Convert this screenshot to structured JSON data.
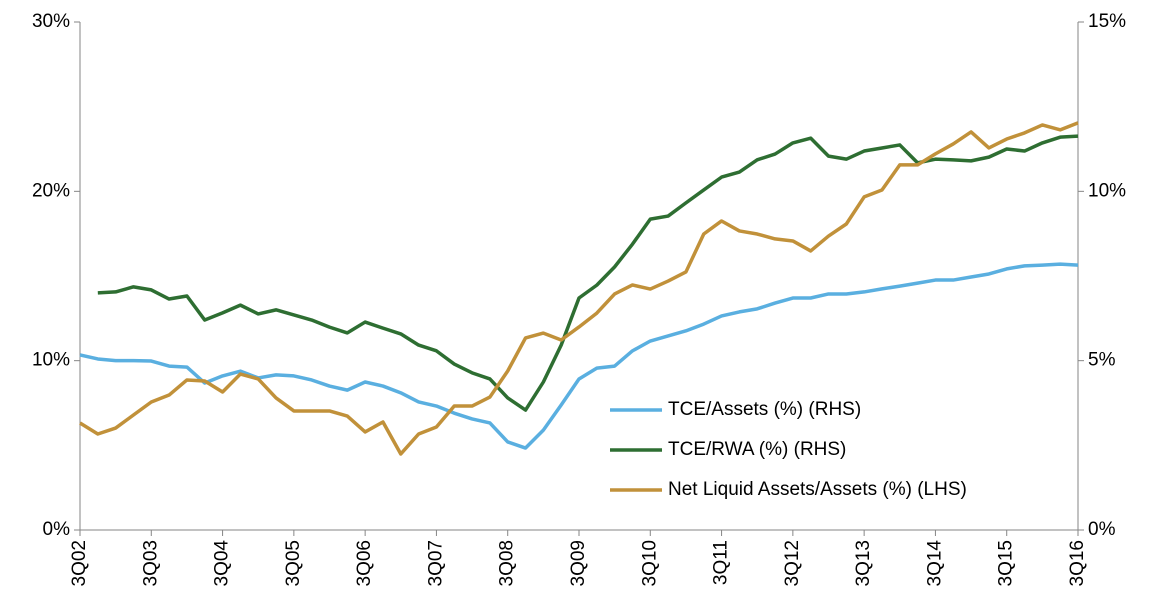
{
  "chart_data": {
    "type": "line",
    "categories": [
      "3Q02",
      null,
      null,
      null,
      "3Q03",
      null,
      null,
      null,
      "3Q04",
      null,
      null,
      null,
      "3Q05",
      null,
      null,
      null,
      "3Q06",
      null,
      null,
      null,
      "3Q07",
      null,
      null,
      null,
      "3Q08",
      null,
      null,
      null,
      "3Q09",
      null,
      null,
      null,
      "3Q10",
      null,
      null,
      null,
      "3Q11",
      null,
      null,
      null,
      "3Q12",
      null,
      null,
      null,
      "3Q13",
      null,
      null,
      null,
      "3Q14",
      null,
      null,
      null,
      "3Q15",
      null,
      null,
      null,
      "3Q16"
    ],
    "series": [
      {
        "name": "TCE/Assets (%) (RHS)",
        "color": "#5aafe0",
        "axis": "y2",
        "values": [
          5.17,
          5.05,
          5.0,
          5.0,
          4.99,
          4.84,
          4.81,
          4.34,
          4.55,
          4.69,
          4.49,
          4.58,
          4.55,
          4.43,
          4.25,
          4.13,
          4.37,
          4.25,
          4.05,
          3.78,
          3.66,
          3.45,
          3.28,
          3.16,
          2.6,
          2.42,
          2.95,
          3.69,
          4.46,
          4.78,
          4.84,
          5.29,
          5.58,
          5.73,
          5.88,
          6.08,
          6.32,
          6.44,
          6.53,
          6.7,
          6.85,
          6.85,
          6.97,
          6.97,
          7.03,
          7.12,
          7.2,
          7.29,
          7.38,
          7.38,
          7.47,
          7.56,
          7.71,
          7.8,
          7.82,
          7.85,
          7.82
        ]
      },
      {
        "name": "TCE/RWA (%) (RHS)",
        "color": "#2e6e32",
        "axis": "y2",
        "values": [
          null,
          7.0,
          7.03,
          7.18,
          7.09,
          6.82,
          6.91,
          6.2,
          6.41,
          6.64,
          6.38,
          6.5,
          6.35,
          6.2,
          5.99,
          5.82,
          6.14,
          5.96,
          5.79,
          5.46,
          5.29,
          4.9,
          4.64,
          4.46,
          3.9,
          3.54,
          4.37,
          5.46,
          6.85,
          7.23,
          7.77,
          8.44,
          9.18,
          9.27,
          9.66,
          10.04,
          10.42,
          10.57,
          10.93,
          11.1,
          11.43,
          11.57,
          11.04,
          10.95,
          11.19,
          11.28,
          11.37,
          10.84,
          10.95,
          10.93,
          10.9,
          11.01,
          11.25,
          11.19,
          11.43,
          11.6,
          11.63
        ]
      },
      {
        "name": "Net Liquid Assets/Assets (%) (LHS)",
        "color": "#c1913a",
        "values": [
          6.32,
          5.67,
          6.02,
          6.79,
          7.56,
          7.97,
          8.86,
          8.8,
          8.15,
          9.21,
          8.92,
          7.8,
          7.03,
          7.03,
          7.03,
          6.73,
          5.79,
          6.38,
          4.49,
          5.67,
          6.08,
          7.32,
          7.32,
          7.85,
          9.39,
          11.34,
          11.63,
          11.22,
          11.99,
          12.81,
          13.94,
          14.47,
          14.23,
          14.7,
          15.24,
          17.48,
          18.25,
          17.66,
          17.48,
          17.19,
          17.07,
          16.48,
          17.36,
          18.07,
          19.67,
          20.08,
          21.56,
          21.56,
          22.21,
          22.8,
          23.51,
          22.56,
          23.09,
          23.45,
          23.92,
          23.63,
          24.04
        ]
      }
    ],
    "ylim": [
      0,
      30
    ],
    "yticks": [
      {
        "value": 0,
        "label": "0%"
      },
      {
        "value": 10,
        "label": "10%"
      },
      {
        "value": 20,
        "label": "20%"
      },
      {
        "value": 30,
        "label": "30%"
      }
    ],
    "y2lim": [
      0,
      15
    ],
    "y2ticks": [
      {
        "value": 0,
        "label": "0%"
      },
      {
        "value": 5,
        "label": "5%"
      },
      {
        "value": 10,
        "label": "10%"
      },
      {
        "value": 15,
        "label": "15%"
      }
    ],
    "grid": false,
    "legend": "lower right"
  }
}
